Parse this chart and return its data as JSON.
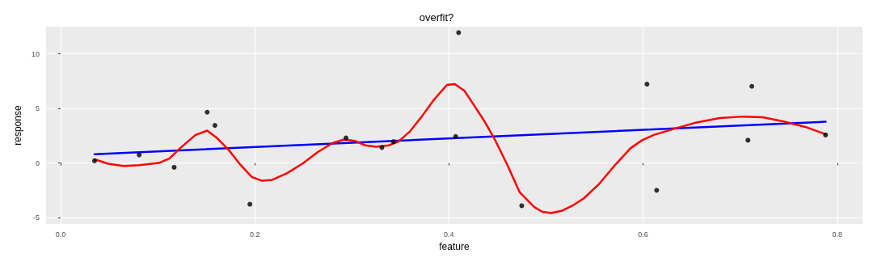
{
  "chart_data": {
    "type": "scatter",
    "title": "overfit?",
    "xlabel": "feature",
    "ylabel": "response",
    "xlim": [
      -0.015,
      0.826
    ],
    "ylim": [
      -5.6,
      12.5
    ],
    "xticks": [
      {
        "value": 0,
        "label": "0.0"
      },
      {
        "value": 0.2,
        "label": "0.2"
      },
      {
        "value": 0.4,
        "label": "0.4"
      },
      {
        "value": 0.6,
        "label": "0.6"
      },
      {
        "value": 0.8,
        "label": "0.8"
      }
    ],
    "yticks": [
      -5,
      0,
      5,
      10
    ],
    "grid": true,
    "series": [
      {
        "color": "#000000",
        "marker": "circle",
        "x": [
          0.035,
          0.081,
          0.117,
          0.151,
          0.159,
          0.195,
          0.294,
          0.331,
          0.343,
          0.41,
          0.407,
          0.475,
          0.604,
          0.614,
          0.712,
          0.708,
          0.788
        ],
        "values": [
          0.2,
          0.74,
          -0.4,
          4.66,
          3.45,
          -3.78,
          2.3,
          1.42,
          1.96,
          11.96,
          2.43,
          -3.92,
          7.23,
          -2.5,
          7.03,
          2.09,
          2.57
        ]
      },
      {
        "type": "line",
        "color": "#0000ff",
        "marker": "none",
        "x": [
          0.035,
          0.788
        ],
        "values": [
          0.81,
          3.78
        ]
      },
      {
        "type": "line",
        "color": "#ff0000",
        "marker": "none",
        "x": [
          0.035,
          0.049,
          0.065,
          0.081,
          0.101,
          0.112,
          0.123,
          0.139,
          0.151,
          0.161,
          0.173,
          0.185,
          0.197,
          0.207,
          0.218,
          0.233,
          0.249,
          0.265,
          0.28,
          0.292,
          0.303,
          0.314,
          0.325,
          0.338,
          0.348,
          0.36,
          0.372,
          0.384,
          0.398,
          0.406,
          0.416,
          0.425,
          0.436,
          0.448,
          0.46,
          0.473,
          0.488,
          0.496,
          0.505,
          0.516,
          0.527,
          0.539,
          0.555,
          0.571,
          0.587,
          0.599,
          0.611,
          0.631,
          0.655,
          0.679,
          0.703,
          0.723,
          0.743,
          0.767,
          0.788
        ],
        "values": [
          0.34,
          -0.07,
          -0.27,
          -0.2,
          0,
          0.41,
          1.35,
          2.57,
          2.97,
          2.3,
          1.22,
          -0.14,
          -1.28,
          -1.62,
          -1.55,
          -0.95,
          -0.07,
          1.01,
          1.82,
          2.16,
          2.03,
          1.62,
          1.49,
          1.62,
          1.96,
          2.91,
          4.26,
          5.74,
          7.16,
          7.23,
          6.62,
          5.41,
          3.92,
          2.03,
          -0.14,
          -2.7,
          -4.05,
          -4.46,
          -4.59,
          -4.39,
          -3.92,
          -3.24,
          -1.89,
          -0.2,
          1.35,
          2.09,
          2.57,
          3.11,
          3.72,
          4.12,
          4.26,
          4.19,
          3.85,
          3.31,
          2.64
        ]
      }
    ]
  }
}
